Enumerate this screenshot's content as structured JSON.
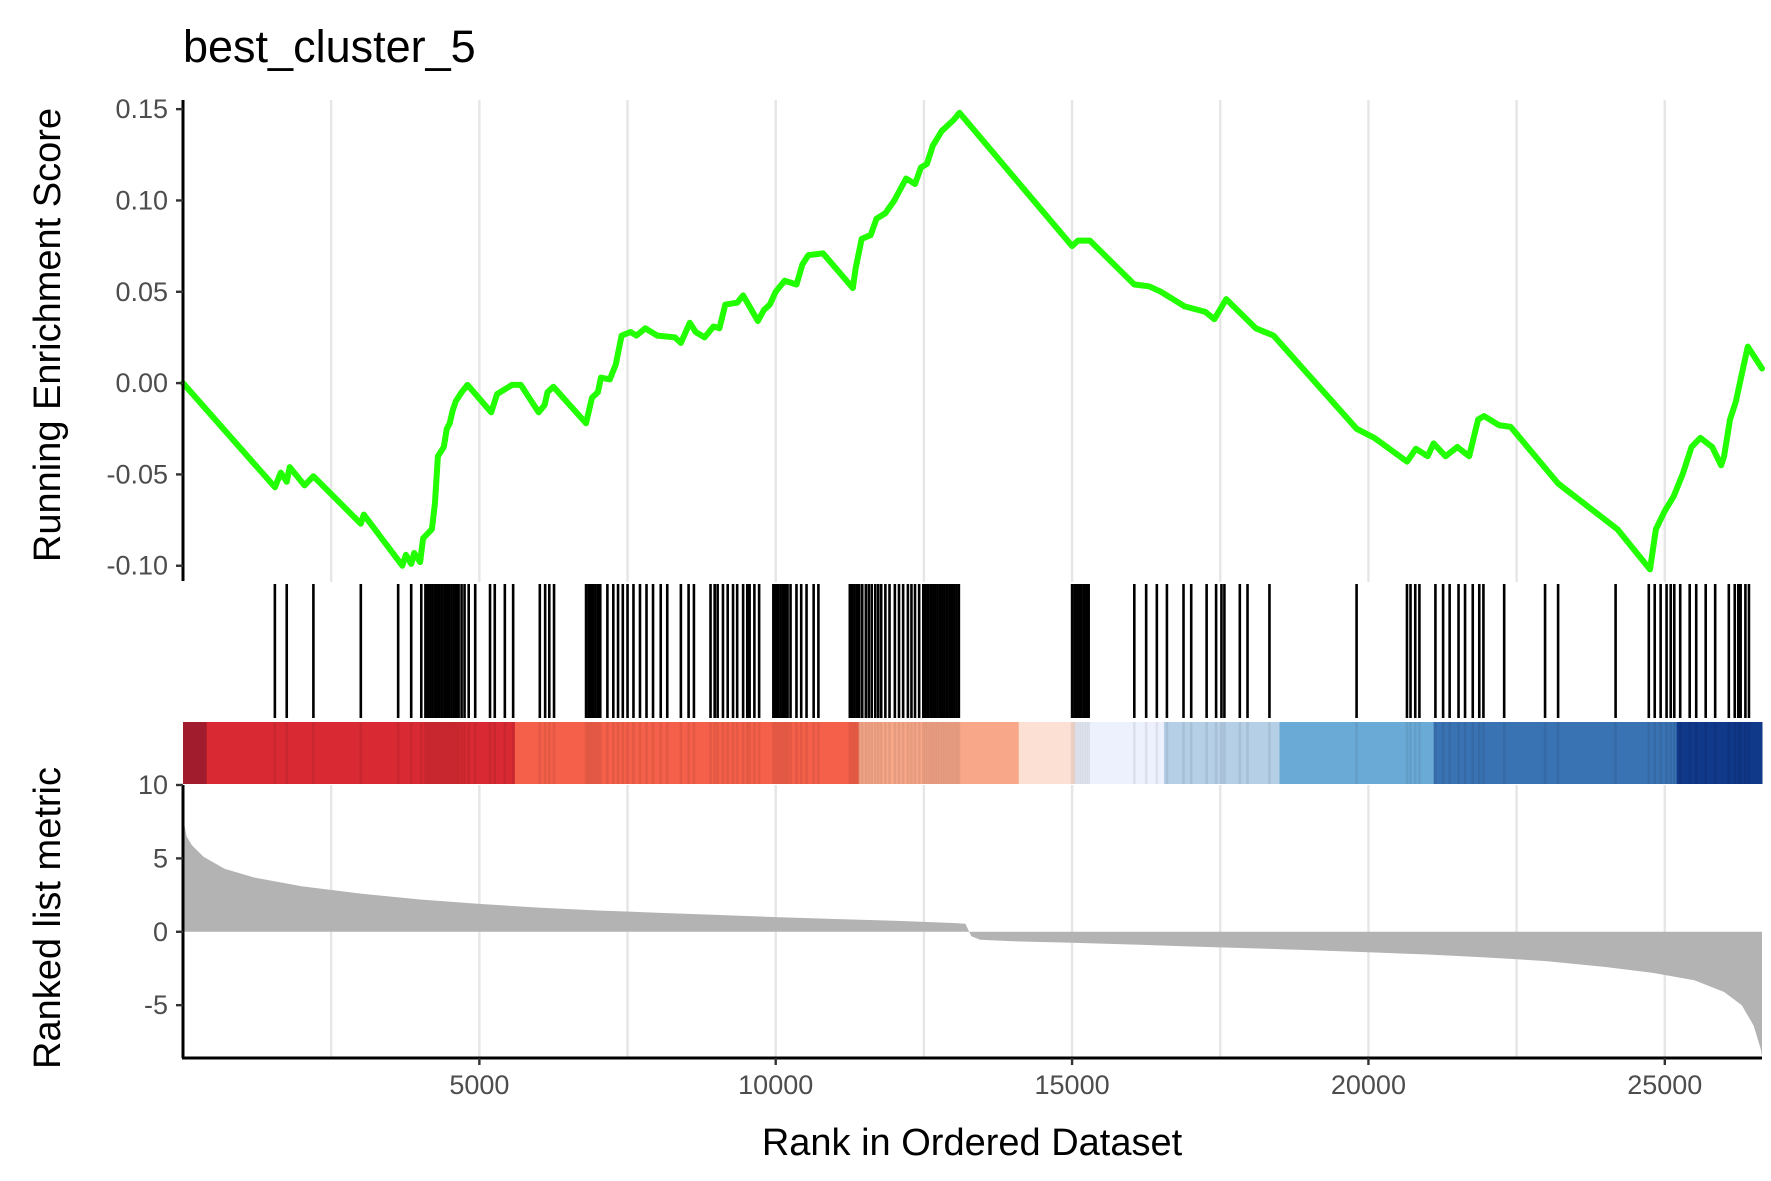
{
  "chart_data": {
    "type": "line",
    "title": "best_cluster_5",
    "xlabel": "Rank in Ordered Dataset",
    "xlim": [
      0,
      26640
    ],
    "x_ticks": [
      "5000",
      "10000",
      "15000",
      "20000",
      "25000"
    ],
    "grid": "vertical",
    "panels": [
      {
        "name": "running-enrichment",
        "ylabel": "Running Enrichment Score",
        "ylim": [
          -0.11,
          0.155
        ],
        "y_ticks": [
          "0.15",
          "0.10",
          "0.05",
          "0.00",
          "-0.05",
          "-0.10"
        ],
        "line_color": "#22ff00",
        "points": [
          [
            0,
            0.0
          ],
          [
            1550,
            -0.057
          ],
          [
            1650,
            -0.049
          ],
          [
            1750,
            -0.054
          ],
          [
            1800,
            -0.046
          ],
          [
            2050,
            -0.056
          ],
          [
            2200,
            -0.051
          ],
          [
            3000,
            -0.077
          ],
          [
            3050,
            -0.072
          ],
          [
            3700,
            -0.1
          ],
          [
            3760,
            -0.094
          ],
          [
            3850,
            -0.099
          ],
          [
            3900,
            -0.093
          ],
          [
            4000,
            -0.098
          ],
          [
            4050,
            -0.085
          ],
          [
            4200,
            -0.08
          ],
          [
            4250,
            -0.066
          ],
          [
            4300,
            -0.04
          ],
          [
            4400,
            -0.035
          ],
          [
            4450,
            -0.025
          ],
          [
            4500,
            -0.022
          ],
          [
            4550,
            -0.015
          ],
          [
            4600,
            -0.01
          ],
          [
            4700,
            -0.005
          ],
          [
            4800,
            -0.001
          ],
          [
            5200,
            -0.016
          ],
          [
            5300,
            -0.006
          ],
          [
            5450,
            -0.003
          ],
          [
            5550,
            -0.001
          ],
          [
            5700,
            -0.001
          ],
          [
            6000,
            -0.016
          ],
          [
            6100,
            -0.012
          ],
          [
            6150,
            -0.005
          ],
          [
            6250,
            -0.002
          ],
          [
            6800,
            -0.022
          ],
          [
            6900,
            -0.008
          ],
          [
            7000,
            -0.005
          ],
          [
            7050,
            0.003
          ],
          [
            7200,
            0.002
          ],
          [
            7300,
            0.01
          ],
          [
            7400,
            0.026
          ],
          [
            7550,
            0.028
          ],
          [
            7650,
            0.026
          ],
          [
            7800,
            0.03
          ],
          [
            8000,
            0.026
          ],
          [
            8300,
            0.025
          ],
          [
            8400,
            0.022
          ],
          [
            8550,
            0.033
          ],
          [
            8650,
            0.028
          ],
          [
            8800,
            0.025
          ],
          [
            8950,
            0.031
          ],
          [
            9050,
            0.03
          ],
          [
            9150,
            0.043
          ],
          [
            9350,
            0.044
          ],
          [
            9450,
            0.048
          ],
          [
            9700,
            0.034
          ],
          [
            9800,
            0.04
          ],
          [
            9900,
            0.043
          ],
          [
            10000,
            0.05
          ],
          [
            10150,
            0.056
          ],
          [
            10350,
            0.054
          ],
          [
            10450,
            0.065
          ],
          [
            10550,
            0.07
          ],
          [
            10800,
            0.071
          ],
          [
            11300,
            0.052
          ],
          [
            11350,
            0.063
          ],
          [
            11450,
            0.079
          ],
          [
            11600,
            0.081
          ],
          [
            11700,
            0.09
          ],
          [
            11850,
            0.093
          ],
          [
            12000,
            0.1
          ],
          [
            12100,
            0.106
          ],
          [
            12200,
            0.112
          ],
          [
            12350,
            0.109
          ],
          [
            12450,
            0.118
          ],
          [
            12550,
            0.12
          ],
          [
            12650,
            0.13
          ],
          [
            12800,
            0.138
          ],
          [
            13000,
            0.144
          ],
          [
            13100,
            0.148
          ],
          [
            15000,
            0.075
          ],
          [
            15100,
            0.078
          ],
          [
            15300,
            0.078
          ],
          [
            16050,
            0.054
          ],
          [
            16300,
            0.053
          ],
          [
            16500,
            0.05
          ],
          [
            16750,
            0.045
          ],
          [
            16900,
            0.042
          ],
          [
            17250,
            0.039
          ],
          [
            17400,
            0.035
          ],
          [
            17600,
            0.046
          ],
          [
            18100,
            0.03
          ],
          [
            18400,
            0.026
          ],
          [
            19800,
            -0.025
          ],
          [
            20100,
            -0.03
          ],
          [
            20650,
            -0.043
          ],
          [
            20800,
            -0.036
          ],
          [
            21000,
            -0.04
          ],
          [
            21100,
            -0.033
          ],
          [
            21300,
            -0.04
          ],
          [
            21500,
            -0.035
          ],
          [
            21700,
            -0.04
          ],
          [
            21850,
            -0.02
          ],
          [
            21950,
            -0.018
          ],
          [
            22200,
            -0.023
          ],
          [
            22400,
            -0.024
          ],
          [
            23200,
            -0.055
          ],
          [
            24200,
            -0.08
          ],
          [
            24750,
            -0.102
          ],
          [
            24850,
            -0.08
          ],
          [
            25000,
            -0.07
          ],
          [
            25150,
            -0.062
          ],
          [
            25300,
            -0.05
          ],
          [
            25450,
            -0.035
          ],
          [
            25600,
            -0.03
          ],
          [
            25800,
            -0.035
          ],
          [
            25950,
            -0.045
          ],
          [
            26000,
            -0.04
          ],
          [
            26100,
            -0.02
          ],
          [
            26200,
            -0.01
          ],
          [
            26300,
            0.005
          ],
          [
            26400,
            0.02
          ],
          [
            26640,
            0.008
          ]
        ]
      },
      {
        "name": "gene-set-hits",
        "hits": [
          1550,
          1750,
          2200,
          3000,
          3630,
          3850,
          4020,
          4090,
          4130,
          4170,
          4210,
          4250,
          4290,
          4330,
          4370,
          4410,
          4450,
          4490,
          4530,
          4570,
          4610,
          4650,
          4700,
          4750,
          4820,
          4930,
          5180,
          5260,
          5430,
          5570,
          6020,
          6110,
          6180,
          6260,
          6800,
          6840,
          6880,
          6920,
          6960,
          7000,
          7040,
          7160,
          7260,
          7340,
          7420,
          7500,
          7600,
          7710,
          7820,
          7930,
          8060,
          8170,
          8400,
          8530,
          8620,
          8900,
          8970,
          9020,
          9110,
          9190,
          9280,
          9350,
          9450,
          9520,
          9560,
          9640,
          9720,
          9960,
          10000,
          10040,
          10080,
          10120,
          10160,
          10200,
          10250,
          10350,
          10430,
          10520,
          10640,
          10720,
          11250,
          11290,
          11330,
          11370,
          11410,
          11460,
          11520,
          11570,
          11620,
          11680,
          11730,
          11780,
          11850,
          11920,
          12010,
          12080,
          12150,
          12230,
          12290,
          12350,
          12420,
          12490,
          12530,
          12570,
          12610,
          12650,
          12690,
          12730,
          12770,
          12810,
          12850,
          12890,
          12930,
          12970,
          13010,
          13050,
          13090,
          15000,
          15040,
          15080,
          15120,
          15160,
          15200,
          15240,
          15280,
          16050,
          16250,
          16430,
          16600,
          16880,
          17010,
          17270,
          17430,
          17520,
          17570,
          17830,
          17960,
          18330,
          19800,
          20650,
          20710,
          20790,
          20860,
          21130,
          21260,
          21370,
          21520,
          21630,
          21760,
          21870,
          21940,
          22290,
          22980,
          23200,
          24170,
          24730,
          24830,
          24930,
          25030,
          25100,
          25160,
          25260,
          25420,
          25530,
          25690,
          25850,
          26080,
          26180,
          26240,
          26280,
          26360,
          26420
        ]
      },
      {
        "name": "ranked-metric",
        "ylabel": "Ranked list metric",
        "ylim": [
          -8.6,
          10
        ],
        "y_ticks": [
          "10",
          "5",
          "0",
          "-5"
        ],
        "fill_color": "#b3b3b3",
        "points": [
          [
            0,
            7.8
          ],
          [
            60,
            6.5
          ],
          [
            150,
            5.9
          ],
          [
            350,
            5.1
          ],
          [
            700,
            4.3
          ],
          [
            1200,
            3.7
          ],
          [
            2000,
            3.1
          ],
          [
            3000,
            2.6
          ],
          [
            4000,
            2.2
          ],
          [
            5000,
            1.9
          ],
          [
            6000,
            1.65
          ],
          [
            7000,
            1.45
          ],
          [
            8000,
            1.3
          ],
          [
            9000,
            1.15
          ],
          [
            10000,
            1.0
          ],
          [
            11000,
            0.87
          ],
          [
            12000,
            0.75
          ],
          [
            13000,
            0.6
          ],
          [
            13200,
            0.55
          ],
          [
            13300,
            -0.3
          ],
          [
            13450,
            -0.55
          ],
          [
            14000,
            -0.65
          ],
          [
            15000,
            -0.75
          ],
          [
            16000,
            -0.87
          ],
          [
            17000,
            -1.0
          ],
          [
            18000,
            -1.12
          ],
          [
            19000,
            -1.25
          ],
          [
            20000,
            -1.4
          ],
          [
            21000,
            -1.55
          ],
          [
            22000,
            -1.75
          ],
          [
            23000,
            -2.0
          ],
          [
            24000,
            -2.4
          ],
          [
            24800,
            -2.8
          ],
          [
            25500,
            -3.3
          ],
          [
            26000,
            -4.1
          ],
          [
            26300,
            -5.0
          ],
          [
            26500,
            -6.4
          ],
          [
            26620,
            -8.0
          ],
          [
            26640,
            -8.5
          ]
        ]
      }
    ],
    "color_bar": [
      {
        "from": 0,
        "to": 400,
        "color": "#a11d2d"
      },
      {
        "from": 400,
        "to": 5600,
        "color": "#d92a33"
      },
      {
        "from": 5600,
        "to": 11400,
        "color": "#f5604a"
      },
      {
        "from": 11400,
        "to": 14100,
        "color": "#f8a789"
      },
      {
        "from": 14100,
        "to": 15050,
        "color": "#fce0d3"
      },
      {
        "from": 15050,
        "to": 16550,
        "color": "#edf1fd"
      },
      {
        "from": 16550,
        "to": 18500,
        "color": "#b5cfe6"
      },
      {
        "from": 18500,
        "to": 21100,
        "color": "#6aaad7"
      },
      {
        "from": 21100,
        "to": 25200,
        "color": "#3a73b3"
      },
      {
        "from": 25200,
        "to": 26640,
        "color": "#10398a"
      }
    ]
  }
}
